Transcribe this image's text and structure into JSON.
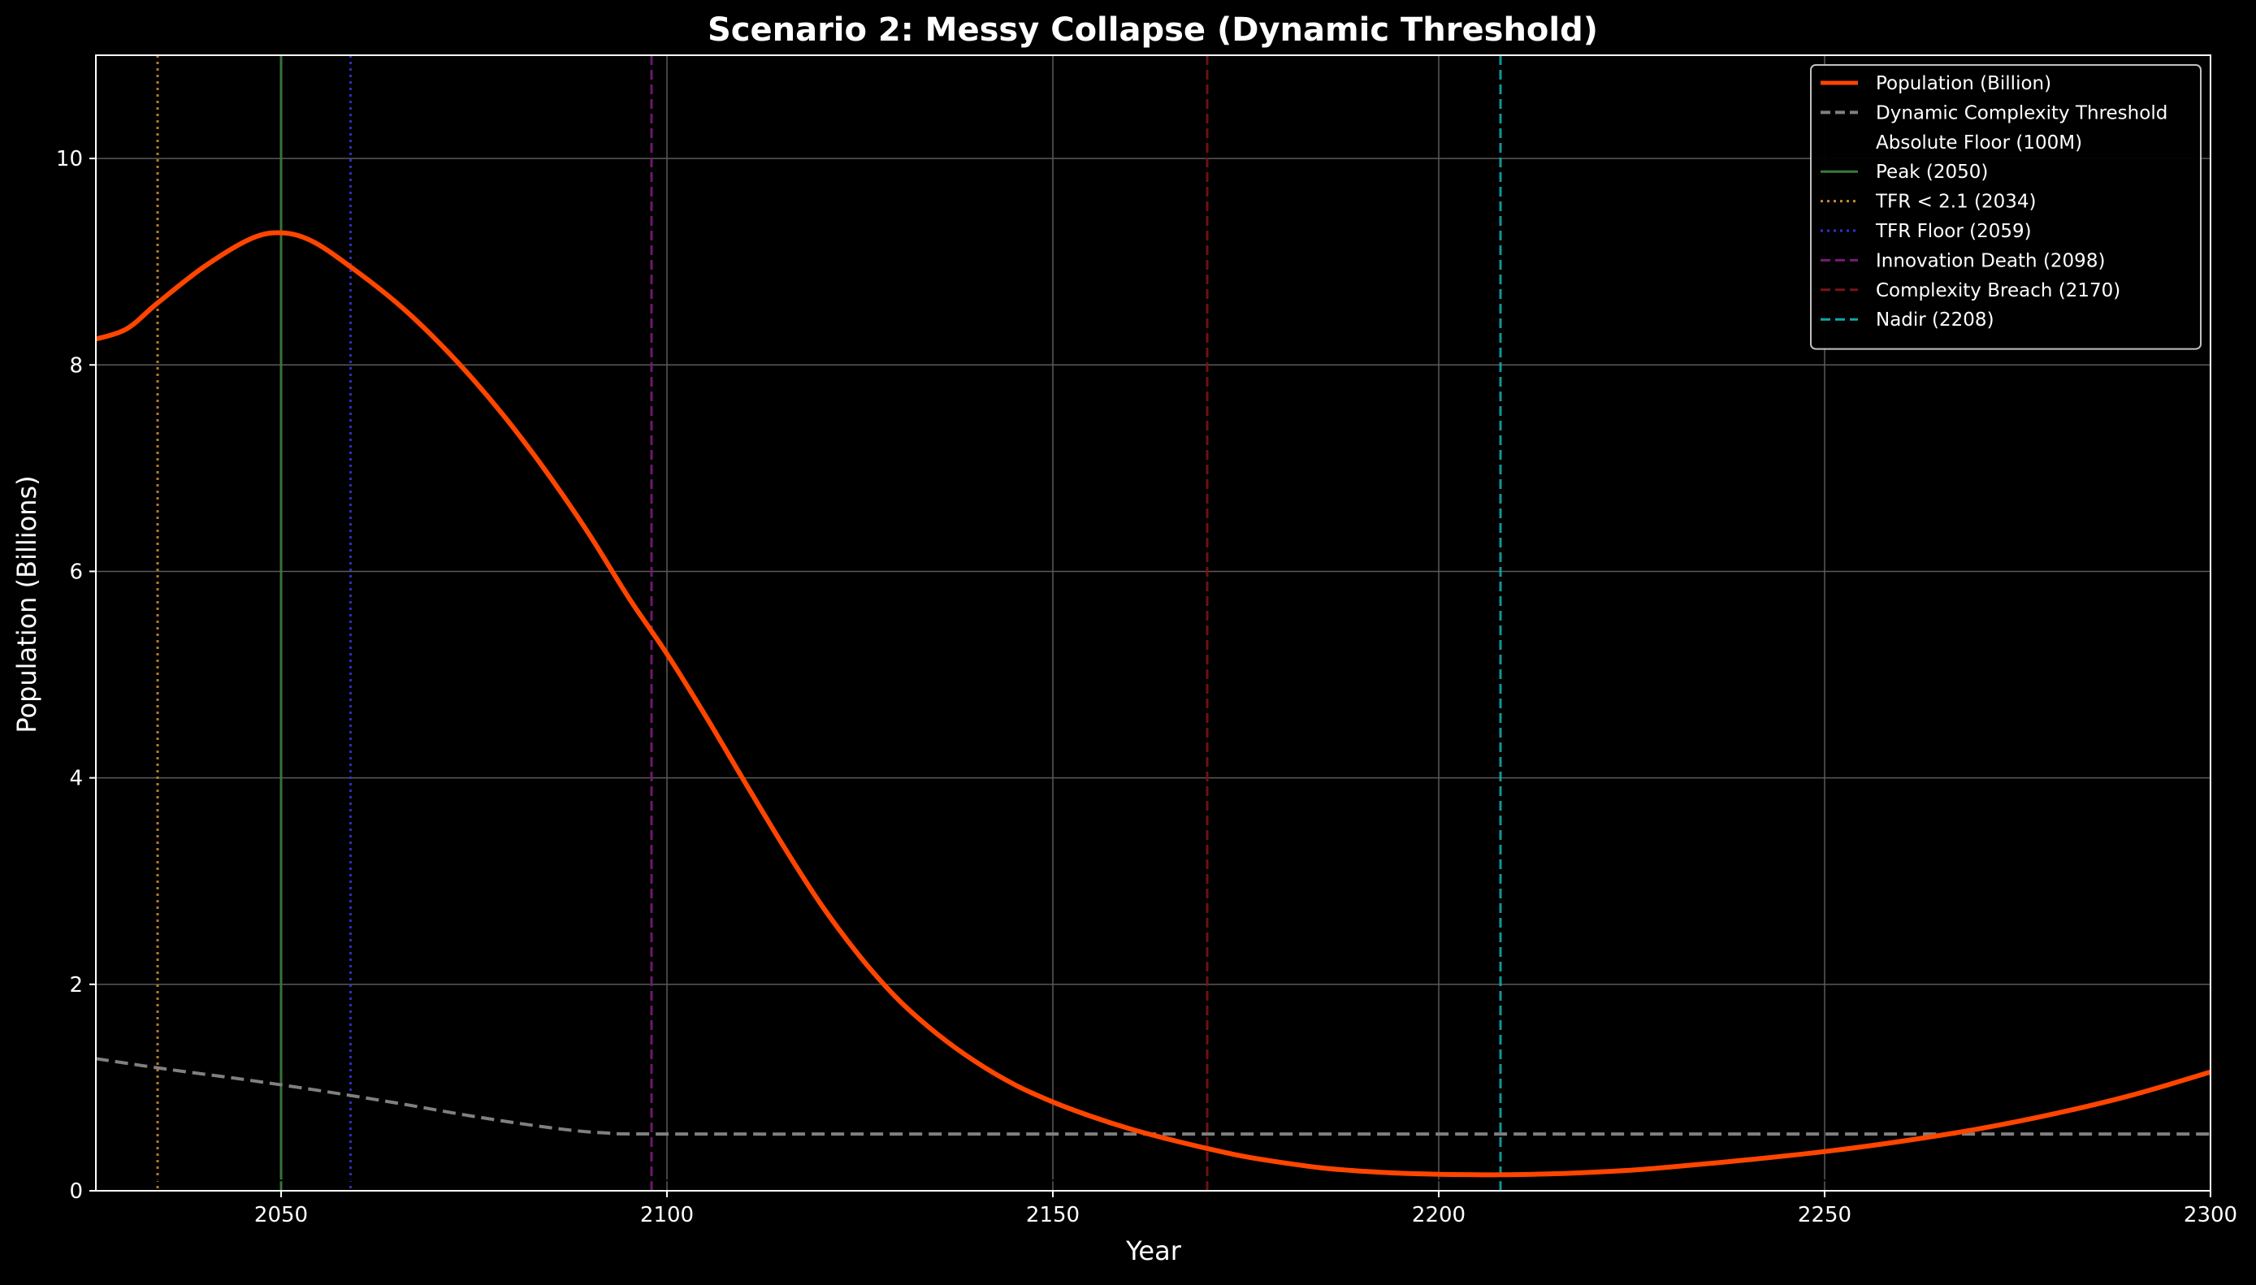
{
  "chart_data": {
    "type": "line",
    "title": "Scenario 2: Messy Collapse (Dynamic Threshold)",
    "xlabel": "Year",
    "ylabel": "Population (Billions)",
    "xlim": [
      2026,
      2300
    ],
    "ylim": [
      0,
      11
    ],
    "xticks": [
      2050,
      2100,
      2150,
      2200,
      2250,
      2300
    ],
    "yticks": [
      0,
      2,
      4,
      6,
      8,
      10
    ],
    "grid": true,
    "legend_position": "top-right",
    "colors": {
      "background": "#000000",
      "population": "#ff4500",
      "threshold": "#808080",
      "grid": "#5a5a5a",
      "axes": "#ffffff"
    },
    "series": [
      {
        "name": "Population (Billion)",
        "style": "solid",
        "x": [
          2026,
          2030,
          2034,
          2040,
          2046,
          2050,
          2054,
          2059,
          2065,
          2070,
          2075,
          2080,
          2085,
          2090,
          2095,
          2100,
          2105,
          2110,
          2115,
          2120,
          2125,
          2130,
          2135,
          2140,
          2145,
          2150,
          2155,
          2160,
          2165,
          2170,
          2175,
          2180,
          2185,
          2190,
          2195,
          2200,
          2205,
          2208,
          2215,
          2220,
          2225,
          2230,
          2240,
          2250,
          2260,
          2270,
          2280,
          2290,
          2300
        ],
        "y": [
          8.25,
          8.35,
          8.6,
          8.95,
          9.22,
          9.28,
          9.2,
          8.95,
          8.6,
          8.25,
          7.85,
          7.4,
          6.9,
          6.35,
          5.75,
          5.2,
          4.6,
          3.97,
          3.35,
          2.77,
          2.27,
          1.85,
          1.52,
          1.25,
          1.03,
          0.86,
          0.72,
          0.6,
          0.5,
          0.41,
          0.33,
          0.27,
          0.22,
          0.19,
          0.17,
          0.16,
          0.155,
          0.155,
          0.165,
          0.18,
          0.2,
          0.23,
          0.3,
          0.38,
          0.48,
          0.6,
          0.75,
          0.93,
          1.15
        ]
      },
      {
        "name": "Dynamic Complexity Threshold",
        "style": "dashed",
        "x": [
          2026,
          2035,
          2045,
          2055,
          2065,
          2075,
          2085,
          2092,
          2100,
          2150,
          2200,
          2250,
          2300
        ],
        "y": [
          1.28,
          1.18,
          1.08,
          0.97,
          0.85,
          0.72,
          0.61,
          0.56,
          0.55,
          0.55,
          0.55,
          0.55,
          0.55
        ]
      },
      {
        "name": "Absolute Floor (100M)",
        "style": "solid",
        "color": "#000000",
        "x": [
          2026,
          2300
        ],
        "y": [
          0.1,
          0.1
        ]
      }
    ],
    "vlines": [
      {
        "name": "Peak (2050)",
        "x": 2050,
        "color": "#3a7a3a",
        "style": "solid"
      },
      {
        "name": "TFR < 2.1 (2034)",
        "x": 2034,
        "color": "#c9892b",
        "style": "dotted"
      },
      {
        "name": "TFR Floor (2059)",
        "x": 2059,
        "color": "#3333cc",
        "style": "dotted"
      },
      {
        "name": "Innovation Death (2098)",
        "x": 2098,
        "color": "#7a1a7a",
        "style": "dashed"
      },
      {
        "name": "Complexity Breach (2170)",
        "x": 2170,
        "color": "#7a1414",
        "style": "dashed"
      },
      {
        "name": "Nadir (2208)",
        "x": 2208,
        "color": "#10a8a8",
        "style": "dashed"
      }
    ]
  }
}
